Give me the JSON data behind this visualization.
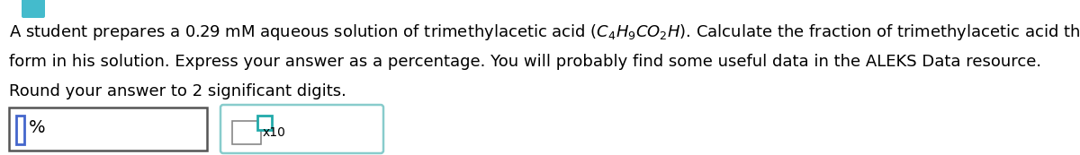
{
  "line1": "A student prepares a 0.29 mM aqueous solution of trimethylacetic acid ",
  "line1_formula": "$(C_4H_9CO_2H)$",
  "line1_end": ". Calculate the fraction of trimethylacetic acid that is in the dissociated",
  "line2": "form in his solution. Express your answer as a percentage. You will probably find some useful data in the ALEKS Data resource.",
  "line3": "Round your answer to 2 significant digits.",
  "percent_label": "%",
  "x10_label": "x10",
  "bg_color": "#ffffff",
  "text_color": "#000000",
  "font_size": 13.0,
  "teal_icon_color": "#44bbcc",
  "box1_edge_color": "#555555",
  "box2_edge_color": "#88cccc",
  "cursor_color": "#4466cc",
  "exp_box_color": "#22aaaa",
  "gray_box_color": "#888888"
}
